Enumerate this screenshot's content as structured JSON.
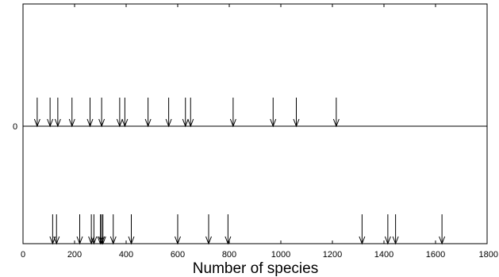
{
  "chart_data": {
    "type": "scatter",
    "xlabel": "Number of species",
    "ylabel": "",
    "xlim": [
      0,
      1800
    ],
    "x_ticks": [
      0,
      200,
      400,
      600,
      800,
      1000,
      1200,
      1400,
      1600,
      1800
    ],
    "y_ticks": [
      0
    ],
    "grid": false,
    "marker": "down-arrow",
    "series": [
      {
        "values": [
          55,
          105,
          135,
          190,
          260,
          305,
          375,
          395,
          485,
          565,
          630,
          650,
          815,
          970,
          1060,
          1215
        ]
      },
      {
        "values": [
          115,
          130,
          220,
          265,
          275,
          300,
          305,
          310,
          350,
          420,
          600,
          720,
          795,
          1315,
          1415,
          1445,
          1625
        ]
      }
    ]
  }
}
